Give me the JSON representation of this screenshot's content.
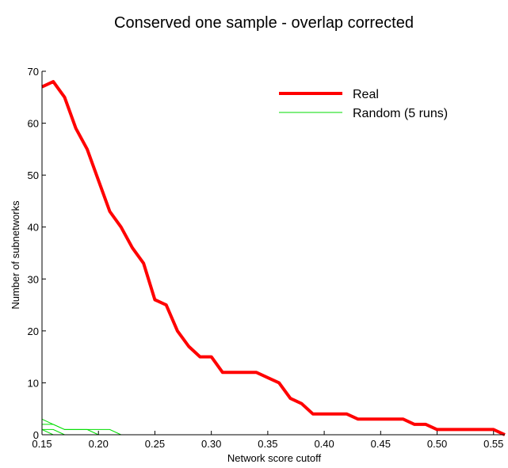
{
  "chart_data": {
    "type": "line",
    "title": "Conserved one sample - overlap corrected",
    "xlabel": "Network score cutoff",
    "ylabel": "Number of subnetworks",
    "xlim": [
      0.15,
      0.56
    ],
    "ylim": [
      0,
      70
    ],
    "xticks": [
      "0.15",
      "0.20",
      "0.25",
      "0.30",
      "0.35",
      "0.40",
      "0.45",
      "0.50",
      "0.55"
    ],
    "yticks": [
      "0",
      "10",
      "20",
      "30",
      "40",
      "50",
      "60",
      "70"
    ],
    "grid": false,
    "legend_position": "top-right",
    "series": [
      {
        "name": "Real",
        "color": "#ff0000",
        "x": [
          0.15,
          0.16,
          0.17,
          0.18,
          0.19,
          0.2,
          0.21,
          0.22,
          0.23,
          0.24,
          0.25,
          0.26,
          0.27,
          0.28,
          0.29,
          0.3,
          0.31,
          0.32,
          0.33,
          0.34,
          0.35,
          0.36,
          0.37,
          0.38,
          0.39,
          0.4,
          0.41,
          0.42,
          0.43,
          0.44,
          0.45,
          0.46,
          0.47,
          0.48,
          0.49,
          0.5,
          0.51,
          0.52,
          0.53,
          0.54,
          0.55,
          0.56
        ],
        "y": [
          67,
          68,
          65,
          59,
          55,
          49,
          43,
          40,
          36,
          33,
          26,
          25,
          20,
          17,
          15,
          15,
          12,
          12,
          12,
          12,
          11,
          10,
          7,
          6,
          4,
          4,
          4,
          4,
          3,
          3,
          3,
          3,
          3,
          2,
          2,
          1,
          1,
          1,
          1,
          1,
          1,
          0
        ]
      },
      {
        "name": "Random (5 runs)",
        "color": "#00dd00",
        "runs": [
          {
            "x": [
              0.15,
              0.16,
              0.17,
              0.18,
              0.19,
              0.2,
              0.21,
              0.22
            ],
            "y": [
              3,
              2,
              1,
              1,
              1,
              1,
              1,
              0
            ]
          },
          {
            "x": [
              0.15,
              0.16,
              0.17,
              0.18,
              0.19,
              0.2
            ],
            "y": [
              2,
              2,
              1,
              1,
              1,
              0
            ]
          },
          {
            "x": [
              0.15,
              0.16,
              0.17
            ],
            "y": [
              1,
              1,
              0
            ]
          },
          {
            "x": [
              0.15,
              0.16,
              0.17
            ],
            "y": [
              1,
              0,
              0
            ]
          },
          {
            "x": [
              0.15,
              0.16
            ],
            "y": [
              0,
              0
            ]
          }
        ]
      }
    ]
  }
}
